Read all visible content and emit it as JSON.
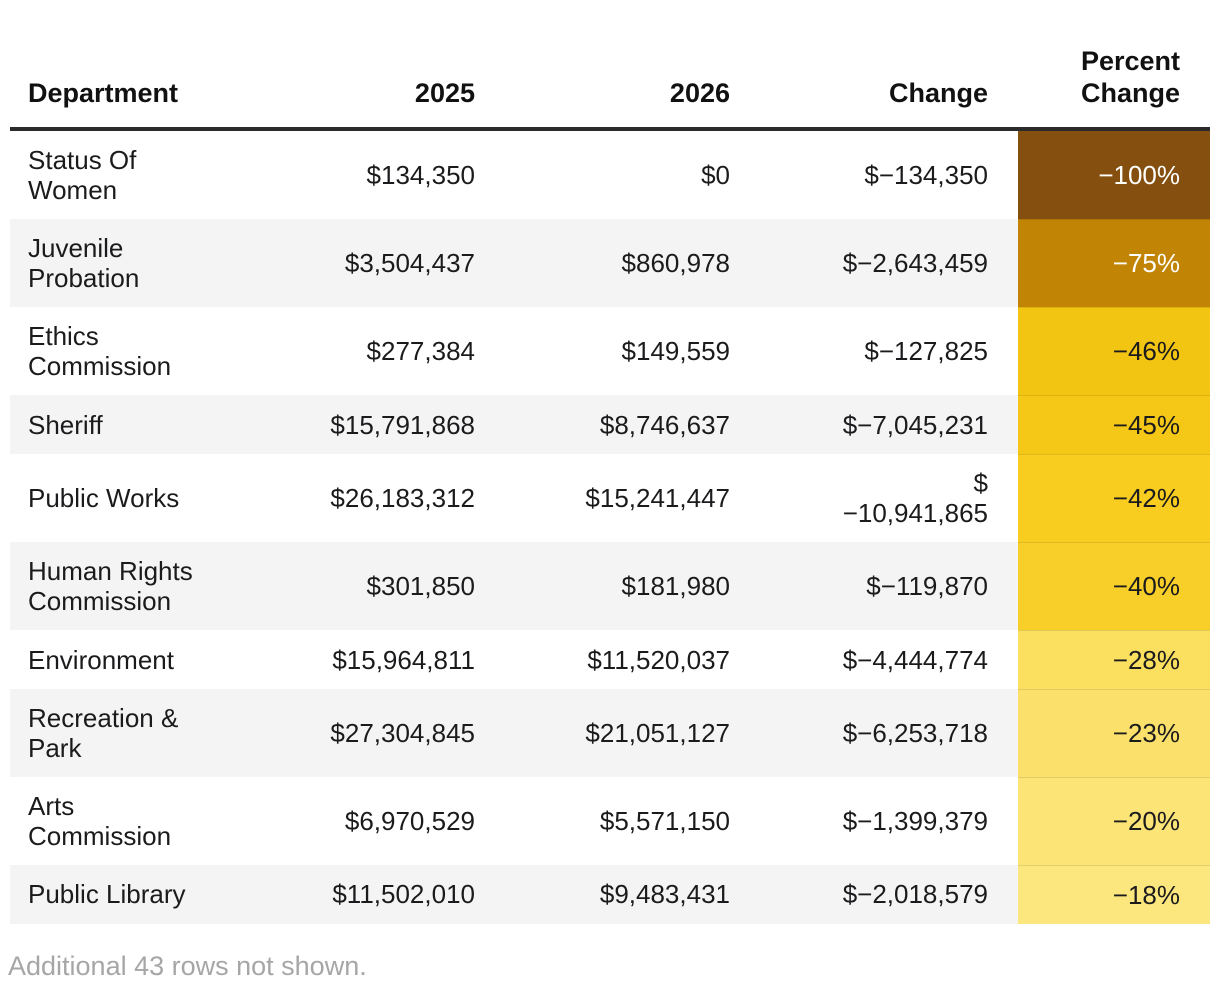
{
  "table": {
    "columns": [
      {
        "key": "department",
        "label": "Department",
        "align": "left"
      },
      {
        "key": "y2025",
        "label": "2025",
        "align": "right"
      },
      {
        "key": "y2026",
        "label": "2026",
        "align": "right"
      },
      {
        "key": "change",
        "label": "Change",
        "align": "right"
      },
      {
        "key": "percent",
        "label": "Percent Change",
        "align": "right"
      }
    ],
    "rows": [
      {
        "department": "Status Of Women",
        "y2025": "$134,350",
        "y2026": "$0",
        "change": "$−134,350",
        "percent": "−100%",
        "percent_bg": "#85500F",
        "percent_fg": "#ffffff"
      },
      {
        "department": "Juvenile Probation",
        "y2025": "$3,504,437",
        "y2026": "$860,978",
        "change": "$−2,643,459",
        "percent": "−75%",
        "percent_bg": "#C18405",
        "percent_fg": "#ffffff"
      },
      {
        "department": "Ethics Commission",
        "y2025": "$277,384",
        "y2026": "$149,559",
        "change": "$−127,825",
        "percent": "−46%",
        "percent_bg": "#F3C513",
        "percent_fg": "#1b1b1d"
      },
      {
        "department": "Sheriff",
        "y2025": "$15,791,868",
        "y2026": "$8,746,637",
        "change": "$−7,045,231",
        "percent": "−45%",
        "percent_bg": "#F5C817",
        "percent_fg": "#1b1b1d"
      },
      {
        "department": "Public Works",
        "y2025": "$26,183,312",
        "y2026": "$15,241,447",
        "change": "$\n−10,941,865",
        "percent": "−42%",
        "percent_bg": "#F8CD1F",
        "percent_fg": "#1b1b1d"
      },
      {
        "department": "Human Rights Commission",
        "y2025": "$301,850",
        "y2026": "$181,980",
        "change": "$−119,870",
        "percent": "−40%",
        "percent_bg": "#F8CE28",
        "percent_fg": "#1b1b1d"
      },
      {
        "department": "Environment",
        "y2025": "$15,964,811",
        "y2026": "$11,520,037",
        "change": "$−4,444,774",
        "percent": "−28%",
        "percent_bg": "#FBDF5F",
        "percent_fg": "#1b1b1d"
      },
      {
        "department": "Recreation & Park",
        "y2025": "$27,304,845",
        "y2026": "$21,051,127",
        "change": "$−6,253,718",
        "percent": "−23%",
        "percent_bg": "#FBE16C",
        "percent_fg": "#1b1b1d"
      },
      {
        "department": "Arts Commission",
        "y2025": "$6,970,529",
        "y2026": "$5,571,150",
        "change": "$−1,399,379",
        "percent": "−20%",
        "percent_bg": "#FCE476",
        "percent_fg": "#1b1b1d"
      },
      {
        "department": "Public Library",
        "y2025": "$11,502,010",
        "y2026": "$9,483,431",
        "change": "$−2,018,579",
        "percent": "−18%",
        "percent_bg": "#FCE77E",
        "percent_fg": "#1b1b1d"
      }
    ]
  },
  "footer": {
    "note": "Additional 43 rows not shown."
  },
  "colors": {
    "header_rule": "#2b2b2b",
    "zebra_row": "#f4f4f4",
    "footnote_text": "#a6a6a6",
    "body_text": "#1b1b1d"
  },
  "chart_data": {
    "type": "table",
    "title": "",
    "columns": [
      "Department",
      "2025",
      "2026",
      "Change",
      "Percent Change"
    ],
    "rows": [
      {
        "department": "Status Of Women",
        "y2025": 134350,
        "y2026": 0,
        "change": -134350,
        "percent_change": -100
      },
      {
        "department": "Juvenile Probation",
        "y2025": 3504437,
        "y2026": 860978,
        "change": -2643459,
        "percent_change": -75
      },
      {
        "department": "Ethics Commission",
        "y2025": 277384,
        "y2026": 149559,
        "change": -127825,
        "percent_change": -46
      },
      {
        "department": "Sheriff",
        "y2025": 15791868,
        "y2026": 8746637,
        "change": -7045231,
        "percent_change": -45
      },
      {
        "department": "Public Works",
        "y2025": 26183312,
        "y2026": 15241447,
        "change": -10941865,
        "percent_change": -42
      },
      {
        "department": "Human Rights Commission",
        "y2025": 301850,
        "y2026": 181980,
        "change": -119870,
        "percent_change": -40
      },
      {
        "department": "Environment",
        "y2025": 15964811,
        "y2026": 11520037,
        "change": -4444774,
        "percent_change": -28
      },
      {
        "department": "Recreation & Park",
        "y2025": 27304845,
        "y2026": 21051127,
        "change": -6253718,
        "percent_change": -23
      },
      {
        "department": "Arts Commission",
        "y2025": 6970529,
        "y2026": 5571150,
        "change": -1399379,
        "percent_change": -20
      },
      {
        "department": "Public Library",
        "y2025": 11502010,
        "y2026": 9483431,
        "change": -2018579,
        "percent_change": -18
      }
    ],
    "notes": "Percent Change column is color-coded from dark brown (−100%) through gold to pale yellow (−18%); white text on the two darkest cells. Footer: Additional 43 rows not shown."
  }
}
